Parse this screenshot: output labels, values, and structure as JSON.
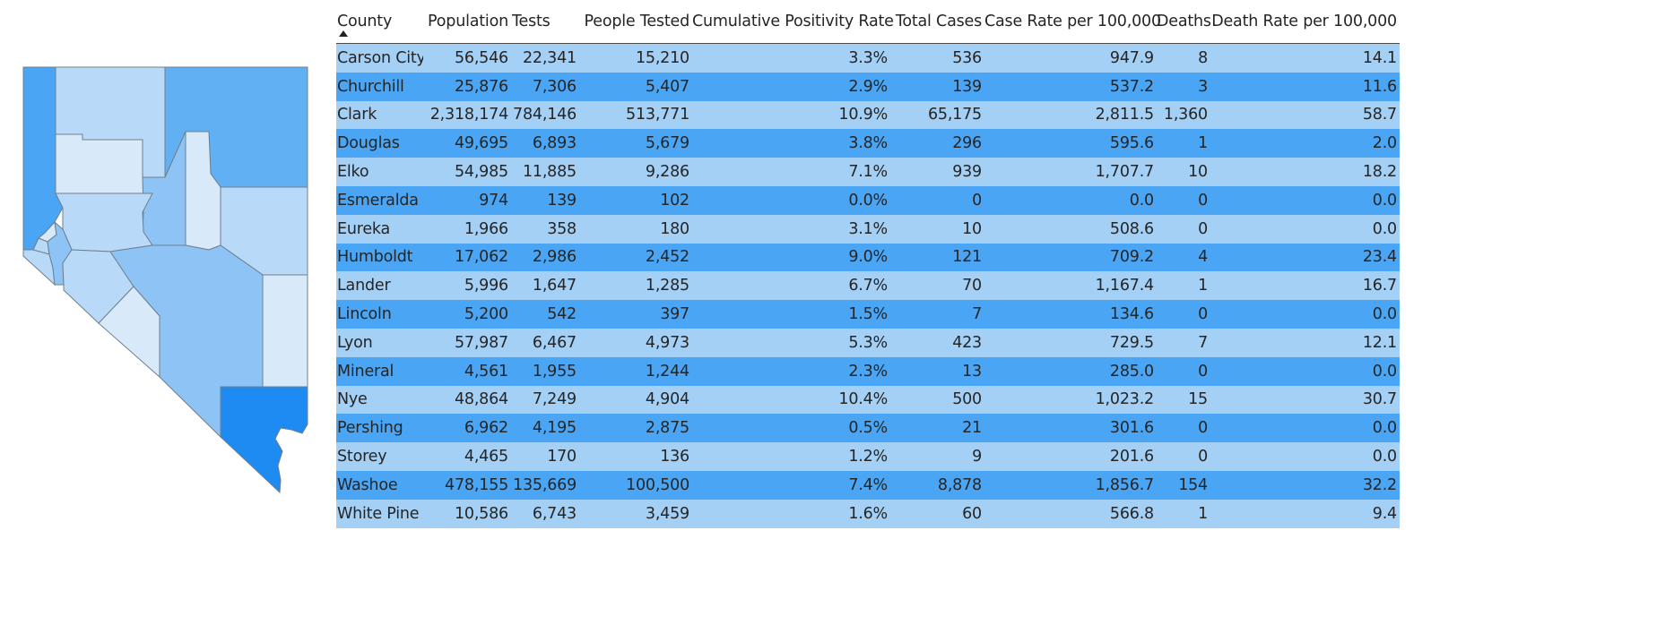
{
  "colors": {
    "row_light": "#a5d0f6",
    "row_dark": "#4aa6f4",
    "map_lightest": "#d8e9fa",
    "map_light": "#b8d9f8",
    "map_medium": "#8ec4f5",
    "map_mid": "#62b0f4",
    "map_dark": "#1d8bf2"
  },
  "map": {
    "counties": [
      {
        "name": "Humboldt",
        "shade": "#b8d9f8"
      },
      {
        "name": "Elko",
        "shade": "#62b0f4"
      },
      {
        "name": "Washoe",
        "shade": "#4aa6f4"
      },
      {
        "name": "Pershing",
        "shade": "#d8e9fa"
      },
      {
        "name": "Lander",
        "shade": "#8ec4f5"
      },
      {
        "name": "Eureka",
        "shade": "#d8e9fa"
      },
      {
        "name": "White Pine",
        "shade": "#b8d9f8"
      },
      {
        "name": "Churchill",
        "shade": "#b8d9f8"
      },
      {
        "name": "Storey",
        "shade": "#d8e9fa"
      },
      {
        "name": "Carson City",
        "shade": "#b8d9f8"
      },
      {
        "name": "Douglas",
        "shade": "#b8d9f8"
      },
      {
        "name": "Lyon",
        "shade": "#8ec4f5"
      },
      {
        "name": "Mineral",
        "shade": "#b8d9f8"
      },
      {
        "name": "Nye",
        "shade": "#8ec4f5"
      },
      {
        "name": "Esmeralda",
        "shade": "#d8e9fa"
      },
      {
        "name": "Lincoln",
        "shade": "#d8e9fa"
      },
      {
        "name": "Clark",
        "shade": "#1d8bf2"
      }
    ]
  },
  "table": {
    "headers": {
      "county": "County",
      "population": "Population",
      "tests": "Tests",
      "people_tested": "People Tested",
      "positivity": "Cumulative Positivity Rate",
      "total_cases": "Total Cases",
      "case_rate": "Case Rate per 100,000",
      "deaths": "Deaths",
      "death_rate": "Death Rate per 100,000"
    },
    "rows": [
      {
        "county": "Carson City",
        "population": "56,546",
        "tests": "22,341",
        "people_tested": "15,210",
        "positivity": "3.3%",
        "total_cases": "536",
        "case_rate": "947.9",
        "deaths": "8",
        "death_rate": "14.1"
      },
      {
        "county": "Churchill",
        "population": "25,876",
        "tests": "7,306",
        "people_tested": "5,407",
        "positivity": "2.9%",
        "total_cases": "139",
        "case_rate": "537.2",
        "deaths": "3",
        "death_rate": "11.6"
      },
      {
        "county": "Clark",
        "population": "2,318,174",
        "tests": "784,146",
        "people_tested": "513,771",
        "positivity": "10.9%",
        "total_cases": "65,175",
        "case_rate": "2,811.5",
        "deaths": "1,360",
        "death_rate": "58.7"
      },
      {
        "county": "Douglas",
        "population": "49,695",
        "tests": "6,893",
        "people_tested": "5,679",
        "positivity": "3.8%",
        "total_cases": "296",
        "case_rate": "595.6",
        "deaths": "1",
        "death_rate": "2.0"
      },
      {
        "county": "Elko",
        "population": "54,985",
        "tests": "11,885",
        "people_tested": "9,286",
        "positivity": "7.1%",
        "total_cases": "939",
        "case_rate": "1,707.7",
        "deaths": "10",
        "death_rate": "18.2"
      },
      {
        "county": "Esmeralda",
        "population": "974",
        "tests": "139",
        "people_tested": "102",
        "positivity": "0.0%",
        "total_cases": "0",
        "case_rate": "0.0",
        "deaths": "0",
        "death_rate": "0.0"
      },
      {
        "county": "Eureka",
        "population": "1,966",
        "tests": "358",
        "people_tested": "180",
        "positivity": "3.1%",
        "total_cases": "10",
        "case_rate": "508.6",
        "deaths": "0",
        "death_rate": "0.0"
      },
      {
        "county": "Humboldt",
        "population": "17,062",
        "tests": "2,986",
        "people_tested": "2,452",
        "positivity": "9.0%",
        "total_cases": "121",
        "case_rate": "709.2",
        "deaths": "4",
        "death_rate": "23.4"
      },
      {
        "county": "Lander",
        "population": "5,996",
        "tests": "1,647",
        "people_tested": "1,285",
        "positivity": "6.7%",
        "total_cases": "70",
        "case_rate": "1,167.4",
        "deaths": "1",
        "death_rate": "16.7"
      },
      {
        "county": "Lincoln",
        "population": "5,200",
        "tests": "542",
        "people_tested": "397",
        "positivity": "1.5%",
        "total_cases": "7",
        "case_rate": "134.6",
        "deaths": "0",
        "death_rate": "0.0"
      },
      {
        "county": "Lyon",
        "population": "57,987",
        "tests": "6,467",
        "people_tested": "4,973",
        "positivity": "5.3%",
        "total_cases": "423",
        "case_rate": "729.5",
        "deaths": "7",
        "death_rate": "12.1"
      },
      {
        "county": "Mineral",
        "population": "4,561",
        "tests": "1,955",
        "people_tested": "1,244",
        "positivity": "2.3%",
        "total_cases": "13",
        "case_rate": "285.0",
        "deaths": "0",
        "death_rate": "0.0"
      },
      {
        "county": "Nye",
        "population": "48,864",
        "tests": "7,249",
        "people_tested": "4,904",
        "positivity": "10.4%",
        "total_cases": "500",
        "case_rate": "1,023.2",
        "deaths": "15",
        "death_rate": "30.7"
      },
      {
        "county": "Pershing",
        "population": "6,962",
        "tests": "4,195",
        "people_tested": "2,875",
        "positivity": "0.5%",
        "total_cases": "21",
        "case_rate": "301.6",
        "deaths": "0",
        "death_rate": "0.0"
      },
      {
        "county": "Storey",
        "population": "4,465",
        "tests": "170",
        "people_tested": "136",
        "positivity": "1.2%",
        "total_cases": "9",
        "case_rate": "201.6",
        "deaths": "0",
        "death_rate": "0.0"
      },
      {
        "county": "Washoe",
        "population": "478,155",
        "tests": "135,669",
        "people_tested": "100,500",
        "positivity": "7.4%",
        "total_cases": "8,878",
        "case_rate": "1,856.7",
        "deaths": "154",
        "death_rate": "32.2"
      },
      {
        "county": "White Pine",
        "population": "10,586",
        "tests": "6,743",
        "people_tested": "3,459",
        "positivity": "1.6%",
        "total_cases": "60",
        "case_rate": "566.8",
        "deaths": "1",
        "death_rate": "9.4"
      }
    ]
  }
}
